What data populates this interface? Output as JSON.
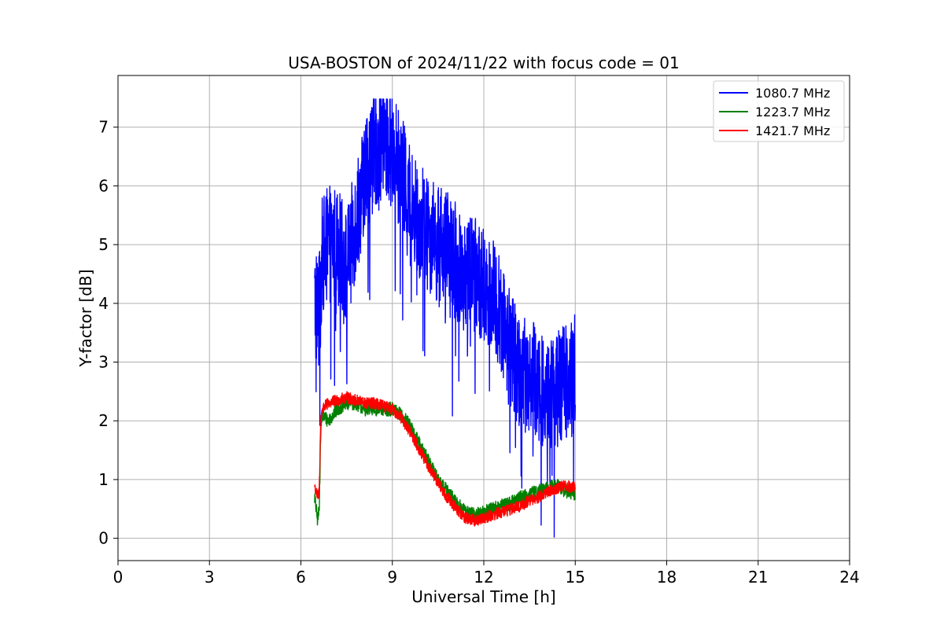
{
  "chart_data": {
    "type": "line",
    "title": "USA-BOSTON of 2024/11/22 with focus code = 01",
    "xlabel": "Universal Time [h]",
    "ylabel": "Y-factor [dB]",
    "xlim": [
      0,
      24
    ],
    "ylim": [
      -0.38,
      7.88
    ],
    "xticks": [
      0,
      3,
      6,
      9,
      12,
      15,
      18,
      21,
      24
    ],
    "yticks": [
      0,
      1,
      2,
      3,
      4,
      5,
      6,
      7
    ],
    "grid": true,
    "legend_position": "top-right",
    "series": [
      {
        "name": "1080.7 MHz",
        "color": "#0000ff",
        "noise": 1.0,
        "x": [
          6.45,
          6.6,
          6.7,
          6.9,
          7.2,
          7.5,
          7.8,
          8.1,
          8.4,
          8.7,
          9.0,
          9.3,
          9.6,
          9.9,
          10.2,
          10.5,
          10.8,
          11.1,
          11.4,
          11.7,
          12.0,
          12.3,
          12.6,
          12.9,
          13.2,
          13.5,
          13.8,
          14.1,
          14.4,
          14.7,
          15.0
        ],
        "y": [
          4.0,
          3.8,
          4.8,
          5.0,
          5.0,
          4.6,
          5.4,
          6.2,
          6.6,
          6.8,
          6.6,
          6.2,
          5.7,
          5.4,
          5.2,
          5.0,
          4.9,
          4.7,
          4.6,
          4.5,
          4.3,
          4.1,
          3.8,
          3.2,
          2.8,
          2.8,
          2.6,
          2.4,
          2.5,
          2.7,
          3.0
        ]
      },
      {
        "name": "1223.7 MHz",
        "color": "#008000",
        "noise": 0.12,
        "x": [
          6.45,
          6.55,
          6.6,
          6.65,
          6.7,
          6.9,
          7.2,
          7.5,
          7.8,
          8.1,
          8.4,
          8.7,
          9.0,
          9.3,
          9.6,
          9.9,
          10.2,
          10.5,
          10.8,
          11.1,
          11.4,
          11.7,
          12.0,
          12.3,
          12.6,
          12.9,
          13.2,
          13.5,
          13.8,
          14.1,
          14.4,
          14.7,
          15.0
        ],
        "y": [
          0.7,
          0.3,
          0.5,
          1.8,
          2.1,
          2.0,
          2.2,
          2.3,
          2.3,
          2.2,
          2.2,
          2.2,
          2.2,
          2.1,
          1.9,
          1.6,
          1.3,
          1.0,
          0.8,
          0.6,
          0.45,
          0.4,
          0.45,
          0.5,
          0.55,
          0.6,
          0.7,
          0.75,
          0.8,
          0.85,
          0.9,
          0.8,
          0.75
        ]
      },
      {
        "name": "1421.7 MHz",
        "color": "#ff0000",
        "noise": 0.1,
        "x": [
          6.45,
          6.55,
          6.6,
          6.65,
          6.7,
          6.9,
          7.2,
          7.5,
          7.8,
          8.1,
          8.4,
          8.7,
          9.0,
          9.3,
          9.6,
          9.9,
          10.2,
          10.5,
          10.8,
          11.1,
          11.4,
          11.7,
          12.0,
          12.3,
          12.6,
          12.9,
          13.2,
          13.5,
          13.8,
          14.1,
          14.4,
          14.7,
          15.0
        ],
        "y": [
          0.9,
          0.7,
          0.8,
          2.0,
          2.2,
          2.3,
          2.35,
          2.4,
          2.35,
          2.3,
          2.3,
          2.25,
          2.2,
          2.05,
          1.8,
          1.5,
          1.2,
          0.95,
          0.7,
          0.5,
          0.35,
          0.3,
          0.35,
          0.4,
          0.45,
          0.5,
          0.55,
          0.65,
          0.7,
          0.8,
          0.85,
          0.9,
          0.85
        ]
      }
    ]
  }
}
